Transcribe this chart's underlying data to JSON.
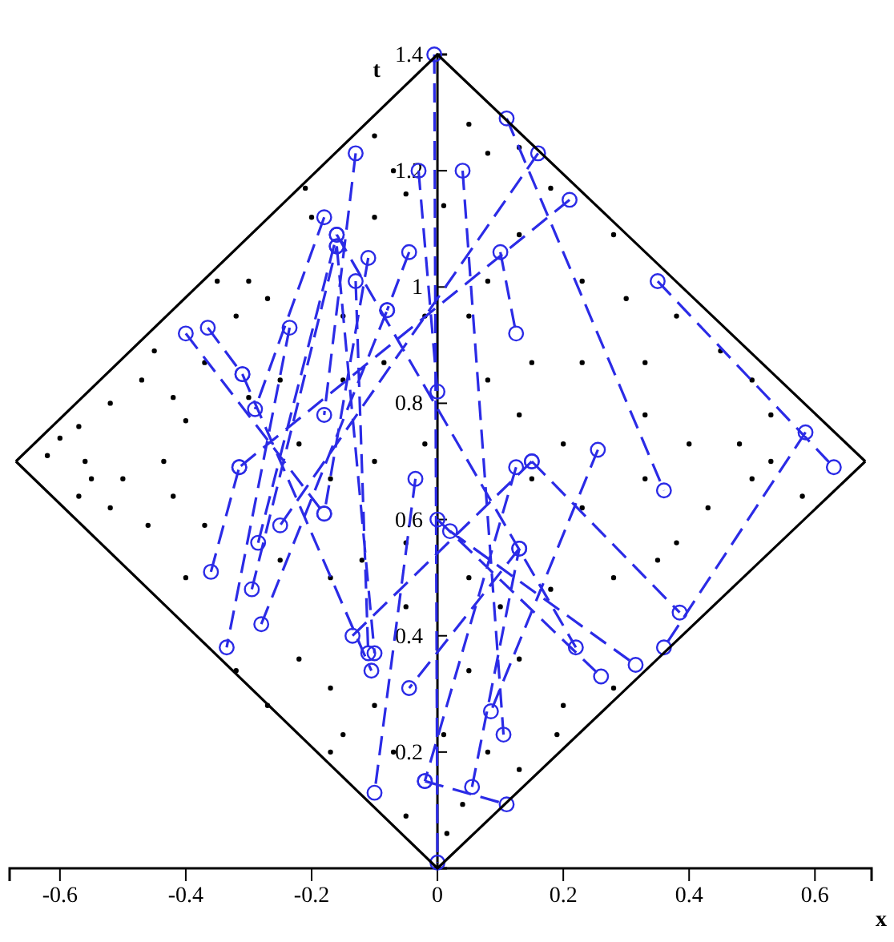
{
  "chart_data": {
    "type": "scatter",
    "xlabel": "x",
    "ylabel": "t",
    "xlim": [
      -0.68,
      0.69
    ],
    "ylim": [
      0,
      1.4
    ],
    "xticks": [
      -0.6,
      -0.4,
      -0.2,
      0,
      0.2,
      0.4,
      0.6
    ],
    "yticks": [
      0.2,
      0.4,
      0.6,
      0.8,
      1,
      1.2,
      1.4
    ],
    "grid": false,
    "series": [
      {
        "color": "#000000",
        "marker": "circle",
        "x": [
          -0.6,
          -0.57,
          -0.52,
          -0.56,
          -0.62,
          -0.47,
          -0.5,
          -0.435,
          -0.4,
          -0.35,
          -0.3,
          -0.27,
          -0.32,
          -0.2,
          -0.21,
          -0.1,
          -0.07,
          -0.05,
          0.05,
          0.08,
          0.13,
          0.18,
          0.28,
          0.3,
          0.38,
          0.45,
          0.5,
          0.53,
          0.48,
          0.4,
          0.33,
          0.23,
          0.15,
          0.08,
          0.05,
          0.08,
          -0.02,
          -0.085,
          -0.15,
          -0.25,
          -0.3,
          -0.42,
          -0.52,
          -0.37,
          -0.25,
          -0.17,
          -0.12,
          -0.05,
          0.05,
          0.1,
          0.18,
          0.28,
          0.38,
          0.43,
          0.5,
          0.33,
          0.23,
          0.15,
          -0.05,
          -0.22,
          -0.17,
          -0.1,
          0.05,
          0.13,
          0.2,
          0.28,
          0.08,
          0.01,
          -0.07,
          -0.15,
          0.04,
          0.015,
          -0.05,
          0.13,
          0.19,
          -0.32,
          -0.27,
          -0.17,
          -0.4,
          -0.46,
          -0.55,
          -0.57,
          0.53,
          0.58,
          0.33,
          0.23,
          0.13,
          0.01,
          -0.1,
          -0.15,
          -0.37,
          -0.45,
          -0.42,
          -0.02,
          0.13,
          0.2,
          0.35,
          -0.17,
          -0.1,
          -0.22
        ],
        "values": [
          0.74,
          0.76,
          0.8,
          0.7,
          0.71,
          0.84,
          0.67,
          0.7,
          0.77,
          1.01,
          1.01,
          0.98,
          0.95,
          1.12,
          1.17,
          1.26,
          1.2,
          1.16,
          1.28,
          1.23,
          1.24,
          1.17,
          1.09,
          0.98,
          0.95,
          0.89,
          0.84,
          0.78,
          0.73,
          0.73,
          0.78,
          0.87,
          0.87,
          0.84,
          0.95,
          1.01,
          0.95,
          0.87,
          0.84,
          0.84,
          0.81,
          0.64,
          0.62,
          0.59,
          0.53,
          0.5,
          0.53,
          0.56,
          0.5,
          0.45,
          0.48,
          0.5,
          0.56,
          0.62,
          0.67,
          0.67,
          0.62,
          0.67,
          0.45,
          0.36,
          0.31,
          0.28,
          0.34,
          0.36,
          0.28,
          0.31,
          0.2,
          0.23,
          0.2,
          0.23,
          0.11,
          0.06,
          0.09,
          0.17,
          0.23,
          0.34,
          0.28,
          0.2,
          0.5,
          0.59,
          0.67,
          0.64,
          0.7,
          0.64,
          0.87,
          1.01,
          1.09,
          1.14,
          1.12,
          0.95,
          0.87,
          0.89,
          0.81,
          0.73,
          0.78,
          0.73,
          0.53,
          0.67,
          0.7,
          0.73
        ]
      },
      {
        "type": "line",
        "color": "#2b2be6",
        "marker": "circle",
        "line_style": "dashed",
        "x": [
          -0.13,
          -0.18,
          null,
          -0.18,
          -0.29,
          null,
          -0.16,
          0.22,
          null,
          -0.16,
          -0.1,
          null,
          -0.13,
          -0.11,
          null,
          -0.11,
          -0.18,
          null,
          -0.045,
          -0.08,
          null,
          -0.03,
          0.0,
          null,
          -0.235,
          -0.335,
          null,
          -0.4,
          -0.18,
          null,
          -0.365,
          -0.31,
          null,
          -0.31,
          -0.105,
          null,
          -0.005,
          0.0,
          null,
          0.11,
          0.36,
          null,
          0.16,
          -0.25,
          null,
          0.21,
          -0.315,
          null,
          0.04,
          0.105,
          null,
          0.1,
          0.125,
          null,
          0.35,
          0.63,
          null,
          0.585,
          0.36,
          null,
          0.255,
          0.085,
          null,
          0.13,
          -0.045,
          null,
          0.125,
          -0.02,
          null,
          0.15,
          0.385,
          null,
          0.02,
          0.315,
          null,
          0.0,
          0.26,
          null,
          -0.035,
          -0.1,
          null,
          -0.36,
          -0.315,
          null,
          -0.295,
          -0.16,
          null,
          -0.28,
          -0.08,
          null,
          -0.02,
          0.11,
          null,
          -0.135,
          0.15,
          null,
          -0.285,
          -0.16,
          null,
          0.055,
          0.13
        ],
        "values": [
          1.23,
          0.78,
          null,
          1.12,
          0.79,
          null,
          1.09,
          0.38,
          null,
          1.07,
          0.37,
          null,
          1.01,
          0.37,
          null,
          1.05,
          0.61,
          null,
          1.06,
          0.96,
          null,
          1.2,
          0.82,
          null,
          0.93,
          0.38,
          null,
          0.92,
          0.61,
          null,
          0.93,
          0.85,
          null,
          0.85,
          0.34,
          null,
          1.4,
          0.01,
          null,
          1.29,
          0.65,
          null,
          1.23,
          0.59,
          null,
          1.15,
          0.69,
          null,
          1.2,
          0.23,
          null,
          1.06,
          0.92,
          null,
          1.01,
          0.69,
          null,
          0.75,
          0.38,
          null,
          0.72,
          0.27,
          null,
          0.55,
          0.31,
          null,
          0.69,
          0.15,
          null,
          0.7,
          0.44,
          null,
          0.58,
          0.35,
          null,
          0.6,
          0.33,
          null,
          0.67,
          0.13,
          null,
          0.51,
          0.69,
          null,
          0.48,
          1.07,
          null,
          0.42,
          0.96,
          null,
          0.15,
          0.11,
          null,
          0.4,
          0.7,
          null,
          0.56,
          1.09,
          null,
          0.14,
          0.55
        ]
      },
      {
        "type": "line",
        "color": "#000000",
        "marker": "none",
        "line_style": "solid",
        "x": [
          -0.67,
          0,
          0.68
        ],
        "values": [
          0.7,
          1.4,
          0.7
        ]
      },
      {
        "type": "line",
        "color": "#000000",
        "marker": "none",
        "line_style": "solid",
        "x": [
          -0.67,
          0,
          0.68
        ],
        "values": [
          0.7,
          0,
          0.7
        ]
      }
    ]
  }
}
